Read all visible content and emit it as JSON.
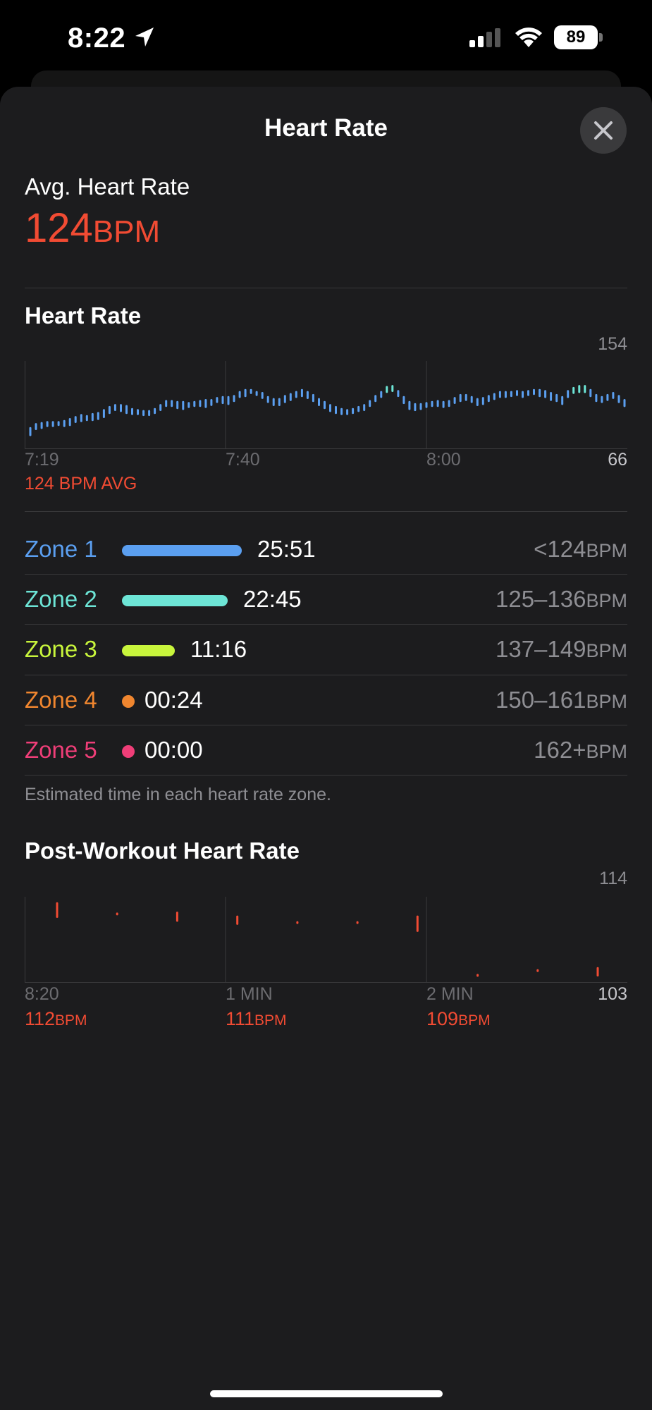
{
  "status_bar": {
    "time": "8:22",
    "battery": "89"
  },
  "sheet": {
    "title": "Heart Rate"
  },
  "summary": {
    "label": "Avg. Heart Rate",
    "value": "124",
    "unit": "BPM"
  },
  "heart_rate_section": {
    "title": "Heart Rate",
    "y_max": "154",
    "y_min": "66",
    "x_labels": [
      "7:19",
      "7:40",
      "8:00"
    ],
    "avg_caption": "124 BPM AVG"
  },
  "zones": [
    {
      "name": "Zone 1",
      "time": "25:51",
      "range": "<124",
      "unit": "BPM",
      "color": "#5b9ff0",
      "fraction": 1.0
    },
    {
      "name": "Zone 2",
      "time": "22:45",
      "range": "125–136",
      "unit": "BPM",
      "color": "#6de5d6",
      "fraction": 0.88
    },
    {
      "name": "Zone 3",
      "time": "11:16",
      "range": "137–149",
      "unit": "BPM",
      "color": "#c8f53c",
      "fraction": 0.44
    },
    {
      "name": "Zone 4",
      "time": "00:24",
      "range": "150–161",
      "unit": "BPM",
      "color": "#f0862f",
      "fraction": 0.02
    },
    {
      "name": "Zone 5",
      "time": "00:00",
      "range": "162+",
      "unit": "BPM",
      "color": "#ef3e78",
      "fraction": 0.0
    }
  ],
  "zones_footnote": "Estimated time in each heart rate zone.",
  "post_workout": {
    "title": "Post-Workout Heart Rate",
    "y_max": "114",
    "y_min": "103",
    "x_labels": [
      "8:20",
      "1 MIN",
      "2 MIN"
    ],
    "values": [
      {
        "num": "112",
        "unit": "BPM"
      },
      {
        "num": "111",
        "unit": "BPM"
      },
      {
        "num": "109",
        "unit": "BPM"
      }
    ]
  },
  "chart_data": [
    {
      "type": "bar",
      "title": "Heart Rate",
      "ylim": [
        66,
        154
      ],
      "x": [
        "7:19",
        "7:40",
        "8:00"
      ],
      "series": [
        {
          "values": [
            [
              79,
              88
            ],
            [
              85,
              92
            ],
            [
              86,
              93
            ],
            [
              88,
              94
            ],
            [
              88,
              94
            ],
            [
              89,
              94
            ],
            [
              88,
              95
            ],
            [
              89,
              97
            ],
            [
              92,
              99
            ],
            [
              93,
              101
            ],
            [
              94,
              100
            ],
            [
              94,
              102
            ],
            [
              95,
              103
            ],
            [
              97,
              106
            ],
            [
              101,
              109
            ],
            [
              104,
              111
            ],
            [
              103,
              111
            ],
            [
              101,
              110
            ],
            [
              100,
              107
            ],
            [
              100,
              106
            ],
            [
              99,
              105
            ],
            [
              99,
              105
            ],
            [
              101,
              107
            ],
            [
              104,
              111
            ],
            [
              108,
              115
            ],
            [
              108,
              115
            ],
            [
              106,
              114
            ],
            [
              105,
              114
            ],
            [
              107,
              113
            ],
            [
              108,
              114
            ],
            [
              108,
              115
            ],
            [
              107,
              116
            ],
            [
              109,
              116
            ],
            [
              112,
              118
            ],
            [
              111,
              119
            ],
            [
              110,
              119
            ],
            [
              113,
              120
            ],
            [
              117,
              124
            ],
            [
              118,
              126
            ],
            [
              121,
              126
            ],
            [
              119,
              124
            ],
            [
              116,
              123
            ],
            [
              112,
              119
            ],
            [
              109,
              117
            ],
            [
              109,
              117
            ],
            [
              112,
              120
            ],
            [
              114,
              122
            ],
            [
              117,
              124
            ],
            [
              118,
              126
            ],
            [
              116,
              124
            ],
            [
              113,
              121
            ],
            [
              109,
              117
            ],
            [
              106,
              114
            ],
            [
              103,
              111
            ],
            [
              101,
              109
            ],
            [
              100,
              107
            ],
            [
              100,
              106
            ],
            [
              101,
              107
            ],
            [
              103,
              109
            ],
            [
              104,
              111
            ],
            [
              108,
              115
            ],
            [
              113,
              120
            ],
            [
              117,
              124
            ],
            [
              122,
              129
            ],
            [
              123,
              130
            ],
            [
              118,
              125
            ],
            [
              111,
              119
            ],
            [
              105,
              114
            ],
            [
              104,
              112
            ],
            [
              105,
              112
            ],
            [
              107,
              113
            ],
            [
              108,
              114
            ],
            [
              108,
              115
            ],
            [
              107,
              114
            ],
            [
              108,
              115
            ],
            [
              111,
              118
            ],
            [
              113,
              121
            ],
            [
              114,
              121
            ],
            [
              112,
              119
            ],
            [
              109,
              117
            ],
            [
              110,
              118
            ],
            [
              113,
              120
            ],
            [
              115,
              122
            ],
            [
              117,
              124
            ],
            [
              117,
              124
            ],
            [
              118,
              124
            ],
            [
              119,
              125
            ],
            [
              117,
              124
            ],
            [
              119,
              125
            ],
            [
              120,
              126
            ],
            [
              118,
              126
            ],
            [
              117,
              125
            ],
            [
              114,
              123
            ],
            [
              113,
              121
            ],
            [
              110,
              119
            ],
            [
              117,
              125
            ],
            [
              121,
              128
            ],
            [
              122,
              130
            ],
            [
              122,
              130
            ],
            [
              118,
              126
            ],
            [
              113,
              121
            ],
            [
              112,
              119
            ],
            [
              114,
              121
            ],
            [
              116,
              123
            ],
            [
              112,
              120
            ],
            [
              108,
              116
            ]
          ]
        }
      ]
    },
    {
      "type": "bar",
      "title": "Post-Workout Heart Rate",
      "ylim": [
        103,
        114
      ],
      "x": [
        "8:20",
        "1 MIN",
        "2 MIN"
      ],
      "series": [
        {
          "values": [
            [
              111.3,
              113.3
            ],
            [
              111.7,
              111.9
            ],
            [
              110.8,
              112.1
            ],
            [
              110.4,
              111.6
            ],
            [
              110.6,
              110.8
            ],
            [
              110.6,
              110.8
            ],
            [
              109.5,
              111.6
            ],
            [
              103.8,
              104.1
            ],
            [
              104.4,
              104.7
            ],
            [
              103.8,
              105.0
            ]
          ]
        }
      ]
    }
  ]
}
